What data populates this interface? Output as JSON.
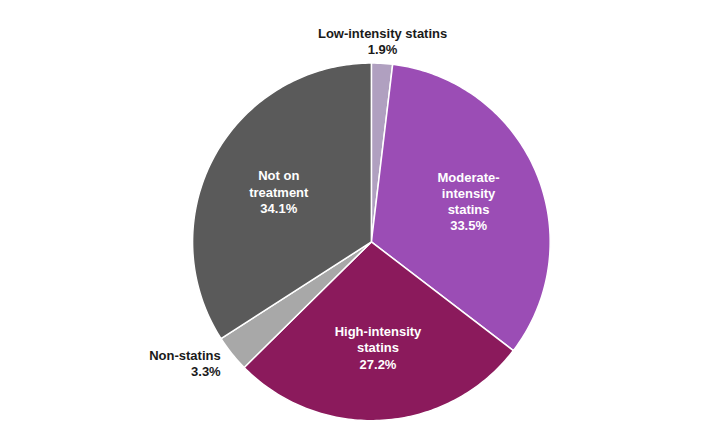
{
  "chart_data": {
    "type": "pie",
    "categories": [
      "Low-intensity statins",
      "Moderate-\nintensity\nstatins",
      "High-intensity\nstatins",
      "Non-statins",
      "Not on\ntreatment"
    ],
    "values": [
      1.9,
      33.5,
      27.2,
      3.3,
      34.1
    ],
    "value_labels": [
      "1.9%",
      "33.5%",
      "27.2%",
      "3.3%",
      "34.1%"
    ],
    "colors": [
      "#B0A0C0",
      "#9B4DB5",
      "#8B1A5C",
      "#A8A8A8",
      "#5A5A5A"
    ],
    "data_labels": true
  }
}
